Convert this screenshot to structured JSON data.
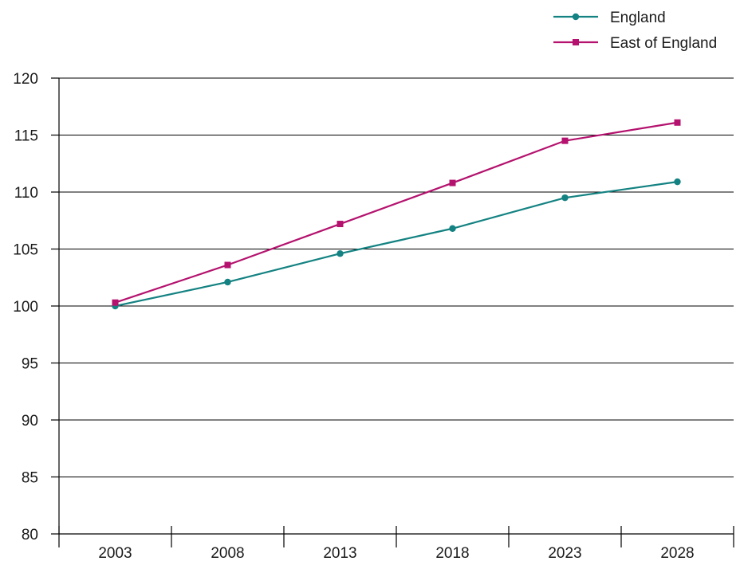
{
  "chart_data": {
    "type": "line",
    "x": [
      "2003",
      "2008",
      "2013",
      "2018",
      "2023",
      "2028"
    ],
    "series": [
      {
        "name": "England",
        "values": [
          100,
          102.1,
          104.6,
          106.8,
          109.5,
          110.9
        ],
        "color": "#148282",
        "marker": "circle"
      },
      {
        "name": "East of England",
        "values": [
          100.3,
          103.6,
          107.2,
          110.8,
          114.5,
          116.1
        ],
        "color": "#b4126e",
        "marker": "square"
      }
    ],
    "yticks": [
      "80",
      "85",
      "90",
      "95",
      "100",
      "105",
      "110",
      "115",
      "120"
    ],
    "ylim": [
      80,
      120
    ],
    "title": "",
    "xlabel": "",
    "ylabel": "",
    "grid": "horizontal",
    "legend_position": "top-right"
  }
}
